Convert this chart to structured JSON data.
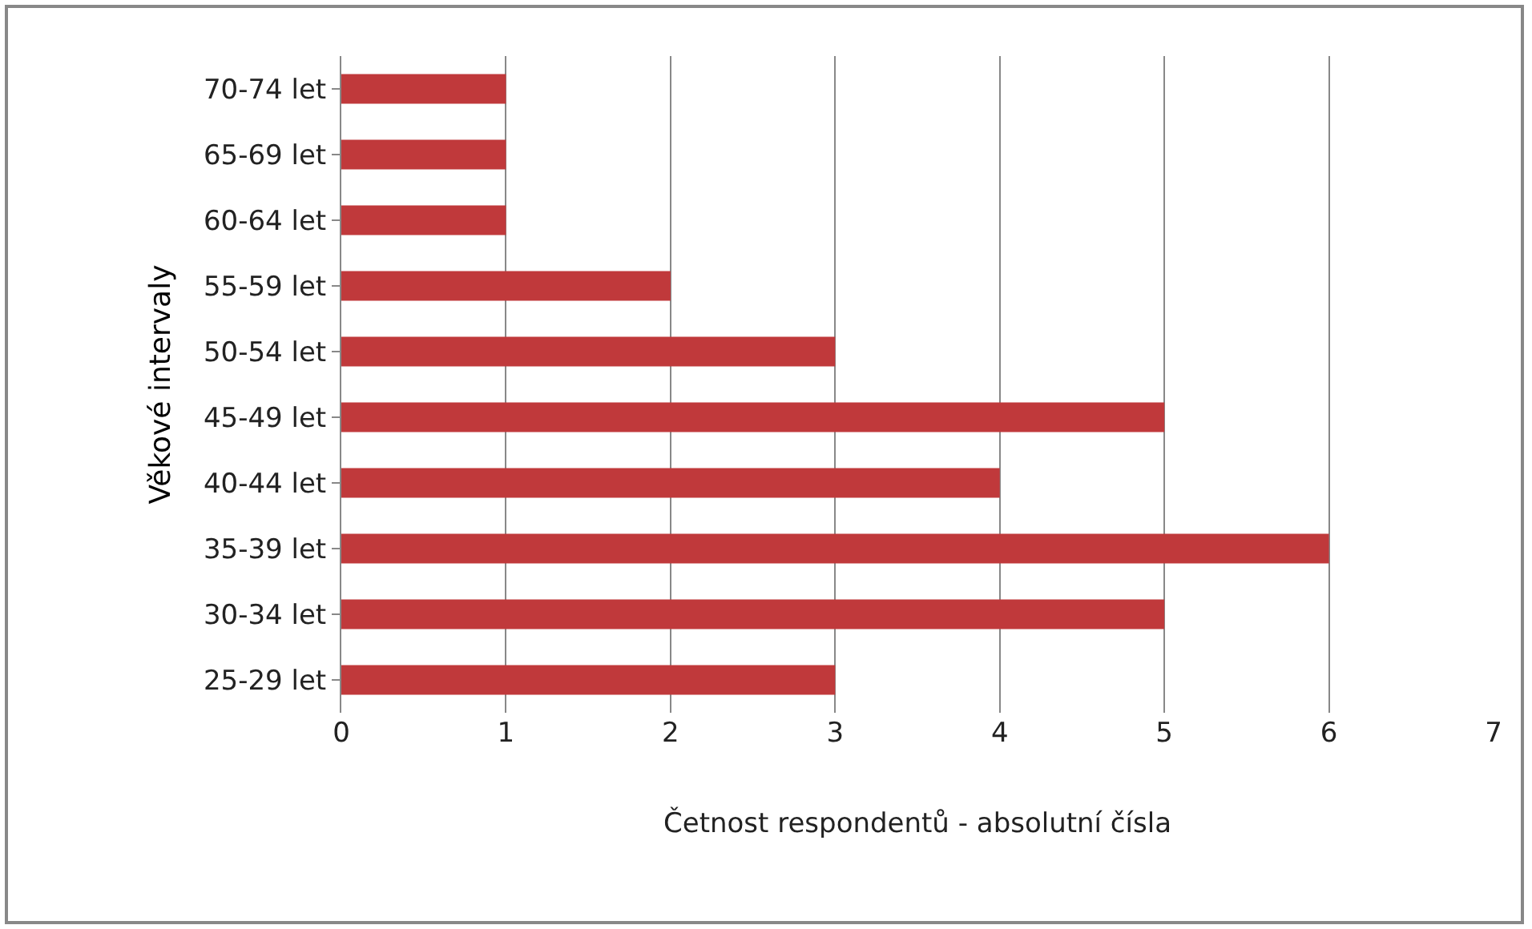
{
  "chart_data": {
    "type": "bar",
    "orientation": "horizontal",
    "categories": [
      "70-74 let",
      "65-69 let",
      "60-64 let",
      "55-59 let",
      "50-54 let",
      "45-49 let",
      "40-44 let",
      "35-39 let",
      "30-34 let",
      "25-29 let"
    ],
    "values": [
      1,
      1,
      1,
      2,
      3,
      5,
      4,
      6,
      5,
      3
    ],
    "color": "#c0393b",
    "xlim": [
      0,
      7
    ],
    "xticks": [
      0,
      1,
      2,
      3,
      4,
      5,
      6,
      7
    ],
    "xlabel": "Četnost respondentů - absolutní čísla",
    "ylabel": "Věkové intervaly",
    "grid": "x"
  }
}
